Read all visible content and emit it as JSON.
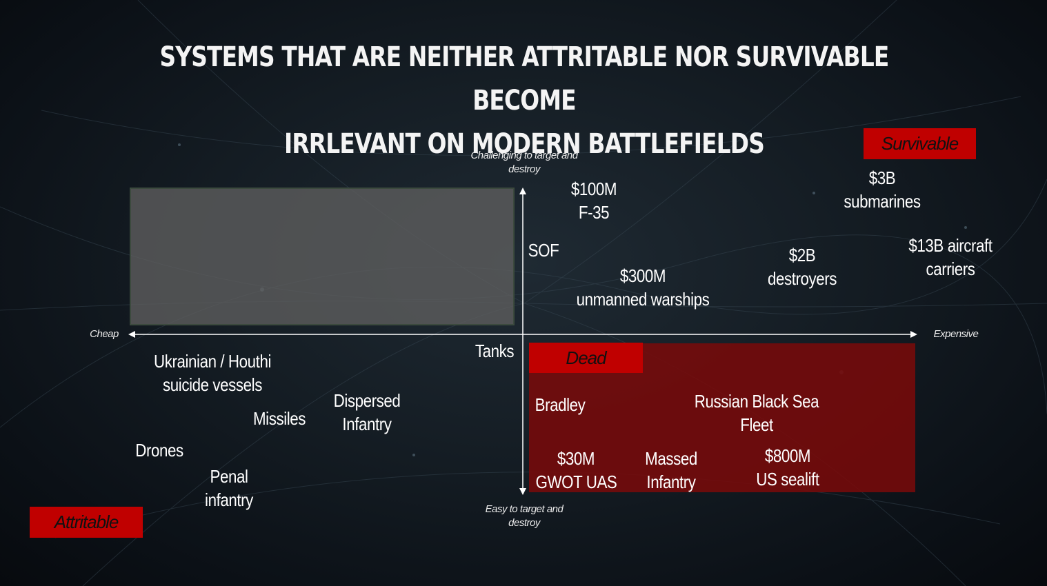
{
  "slide": {
    "title_line1": "SYSTEMS THAT ARE NEITHER ATTRITABLE NOR SURVIVABLE BECOME",
    "title_line2": "IRRLEVANT ON MODERN BATTLEFIELDS"
  },
  "axes": {
    "y_top": "Challenging to target and destroy",
    "y_bottom": "Easy to target and destroy",
    "x_left": "Cheap",
    "x_right": "Expensive"
  },
  "quadrant_tags": {
    "survivable": "Survivable",
    "dead": "Dead",
    "attritable": "Attritable"
  },
  "items": {
    "f35": [
      "$100M",
      "F-35"
    ],
    "sof": [
      "SOF"
    ],
    "submarines": [
      "$3B",
      "submarines"
    ],
    "carriers": [
      "$13B aircraft",
      "carriers"
    ],
    "destroyers": [
      "$2B",
      "destroyers"
    ],
    "warships": [
      "$300M",
      "unmanned warships"
    ],
    "tanks": [
      "Tanks"
    ],
    "suicide_vessels": [
      "Ukrainian / Houthi",
      "suicide vessels"
    ],
    "missiles": [
      "Missiles"
    ],
    "dispersed_infantry": [
      "Dispersed",
      "Infantry"
    ],
    "drones": [
      "Drones"
    ],
    "penal_infantry": [
      "Penal",
      "infantry"
    ],
    "bradley": [
      "Bradley"
    ],
    "black_sea_fleet": [
      "Russian Black Sea",
      "Fleet"
    ],
    "gwot_uas": [
      "$30M",
      "GWOT UAS"
    ],
    "massed_infantry": [
      "Massed",
      "Infantry"
    ],
    "sealift": [
      "$800M",
      "US sealift"
    ]
  },
  "colors": {
    "tag_red": "#c00000",
    "dead_zone": "#780a0a",
    "gray_zone": "#5f5f5f"
  }
}
